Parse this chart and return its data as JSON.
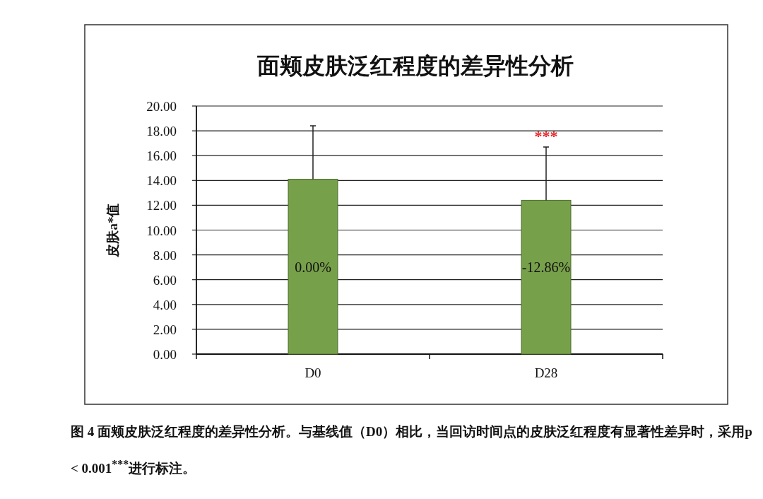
{
  "chart_data": {
    "type": "bar",
    "title": "面颊皮肤泛红程度的差异性分析",
    "ylabel": "皮肤a*值",
    "categories": [
      "D0",
      "D28"
    ],
    "values": [
      14.1,
      12.4
    ],
    "errors": [
      [
        14.1,
        18.4
      ],
      [
        12.4,
        16.7
      ]
    ],
    "color": "#77a04a",
    "ylim": [
      0,
      20
    ],
    "yticks": [
      {
        "value": 0,
        "label": "0.00"
      },
      {
        "value": 2,
        "label": "2.00"
      },
      {
        "value": 4,
        "label": "4.00"
      },
      {
        "value": 6,
        "label": "6.00"
      },
      {
        "value": 8,
        "label": "8.00"
      },
      {
        "value": 10,
        "label": "10.00"
      },
      {
        "value": 12,
        "label": "12.00"
      },
      {
        "value": 14,
        "label": "14.00"
      },
      {
        "value": 16,
        "label": "16.00"
      },
      {
        "value": 18,
        "label": "18.00"
      },
      {
        "value": 20,
        "label": "20.00"
      }
    ],
    "grid": "y",
    "annotations": [
      {
        "text": "***",
        "x": "D28",
        "y": 16.7
      },
      "0.00%",
      "-12.86%",
      "图 4  面颊皮肤泛红程度的差异性分析。与基线值（D0）相比，当回访时间点的皮肤泛红程度有显著性差异时，采用p < 0.001$^{***}$进行标注。"
    ]
  }
}
